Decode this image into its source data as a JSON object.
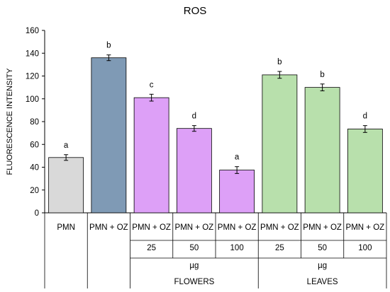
{
  "chart_data": {
    "type": "bar",
    "title": "ROS",
    "ylabel": "FLUORESCENCE INTENSITY",
    "ylim": [
      0,
      160
    ],
    "yticks": [
      0,
      20,
      40,
      60,
      80,
      100,
      120,
      140,
      160
    ],
    "categories": [
      "PMN",
      "PMN + OZ",
      "PMN + OZ",
      "PMN + OZ",
      "PMN + OZ",
      "PMN + OZ",
      "PMN + OZ",
      "PMN + OZ"
    ],
    "doses": [
      "",
      "",
      "25",
      "50",
      "100",
      "25",
      "50",
      "100"
    ],
    "values": [
      48.5,
      136,
      101,
      74,
      37.5,
      121,
      110,
      73.5
    ],
    "errors": [
      2.5,
      2.5,
      3,
      2.5,
      3,
      3,
      3,
      3
    ],
    "letters": [
      "a",
      "b",
      "c",
      "d",
      "a",
      "b",
      "b",
      "d"
    ],
    "colors": [
      "#d9d9d9",
      "#7f9ab5",
      "#dda0f7",
      "#dda0f7",
      "#dda0f7",
      "#b8e0ac",
      "#b8e0ac",
      "#b8e0ac"
    ],
    "groups": [
      {
        "unit": "µg",
        "label": "FLOWERS",
        "start": 2,
        "end": 4
      },
      {
        "unit": "µg",
        "label": "LEAVES",
        "start": 5,
        "end": 7
      }
    ],
    "grid": false
  }
}
